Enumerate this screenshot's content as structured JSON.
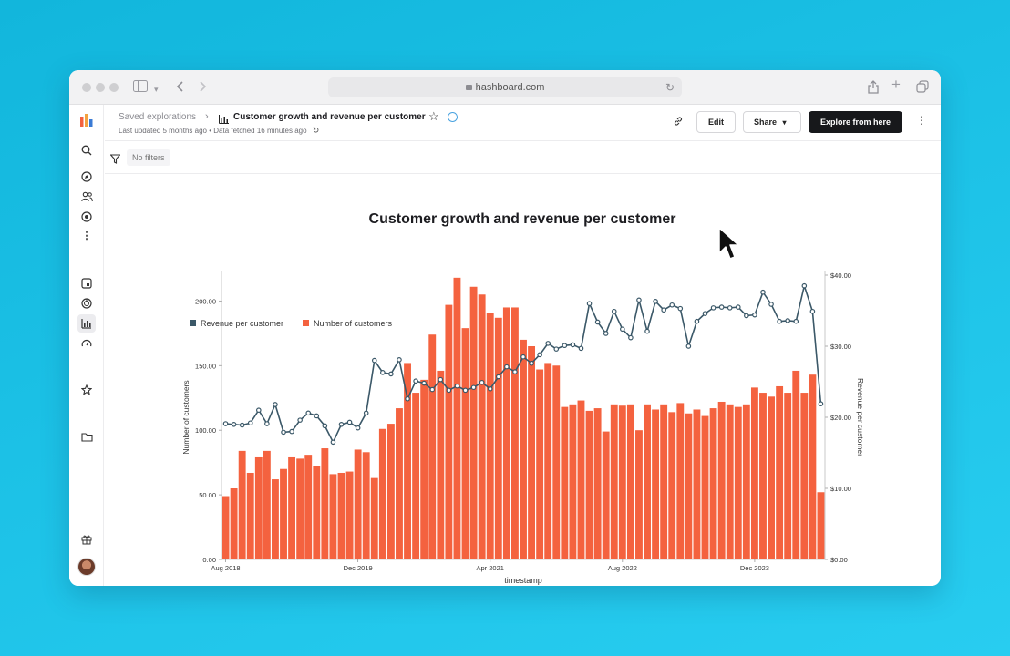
{
  "browser": {
    "url": "hashboard.com"
  },
  "sidebar": {
    "items": [
      "search-icon",
      "compass-icon",
      "users-icon",
      "target-icon",
      "more-icon",
      "square-icon",
      "palette-icon",
      "bar-chart-icon",
      "gauge-icon",
      "star-icon",
      "folder-icon",
      "gift-icon"
    ]
  },
  "header": {
    "breadcrumb_parent": "Saved explorations",
    "title": "Customer growth and revenue per customer",
    "meta_updated": "Last updated 5 months ago",
    "meta_separator": "•",
    "meta_fetched": "Data fetched 16 minutes ago",
    "edit_label": "Edit",
    "share_label": "Share",
    "explore_label": "Explore from here"
  },
  "filters": {
    "label": "No filters"
  },
  "colors": {
    "bar": "#f4623f",
    "line": "#3b5868",
    "accent_dark": "#17181b"
  },
  "chart_data": {
    "type": "bar+line",
    "title": "Customer growth and revenue per customer",
    "xlabel": "timestamp",
    "ylabel_left": "Number of customers",
    "ylabel_right": "Revenue per customer",
    "x_ticks": [
      "Aug 2018",
      "Dec 2019",
      "Apr 2021",
      "Aug 2022",
      "Dec 2023"
    ],
    "y_left_ticks": [
      "0.00",
      "50.00",
      "100.00",
      "150.00",
      "200.00"
    ],
    "y_right_ticks": [
      "$0.00",
      "$10.00",
      "$20.00",
      "$30.00",
      "$40.00"
    ],
    "ylim_left": [
      0,
      220
    ],
    "ylim_right": [
      0,
      40
    ],
    "legend_position": "top-left",
    "series": [
      {
        "name": "Revenue per customer",
        "type": "line",
        "axis": "right",
        "values": [
          19.1,
          19,
          18.9,
          19.2,
          21,
          19.1,
          21.8,
          17.9,
          18,
          19.6,
          20.6,
          20.2,
          18.8,
          16.5,
          19,
          19.3,
          18.5,
          20.6,
          28,
          26.3,
          26.1,
          28.1,
          22.6,
          25.1,
          24.8,
          23.9,
          25.3,
          23.8,
          24.4,
          23.8,
          24.2,
          24.9,
          24,
          25.7,
          27.1,
          26.4,
          28.5,
          27.6,
          28.8,
          30.4,
          29.6,
          30.1,
          30.2,
          29.7,
          36,
          33.4,
          31.8,
          34.9,
          32.4,
          31.2,
          36.5,
          32.1,
          36.3,
          35.1,
          35.8,
          35.3,
          30,
          33.5,
          34.6,
          35.4,
          35.5,
          35.4,
          35.5,
          34.3,
          34.4,
          37.6,
          35.9,
          33.5,
          33.6,
          33.5,
          38.5,
          34.9,
          21.9
        ]
      },
      {
        "name": "Number of customers",
        "type": "bar",
        "axis": "left",
        "values": [
          49,
          55,
          84,
          67,
          79,
          84,
          62,
          70,
          79,
          78,
          81,
          72,
          86,
          66,
          67,
          68,
          85,
          83,
          63,
          101,
          105,
          117,
          152,
          129,
          139,
          174,
          146,
          197,
          218,
          179,
          211,
          205,
          191,
          187,
          195,
          195,
          170,
          165,
          147,
          152,
          150,
          118,
          120,
          123,
          115,
          117,
          99,
          120,
          119,
          120,
          100,
          120,
          116,
          120,
          114,
          121,
          113,
          116,
          111,
          117,
          122,
          120,
          118,
          120,
          133,
          129,
          126,
          134,
          129,
          146,
          129,
          143,
          52
        ]
      }
    ]
  }
}
